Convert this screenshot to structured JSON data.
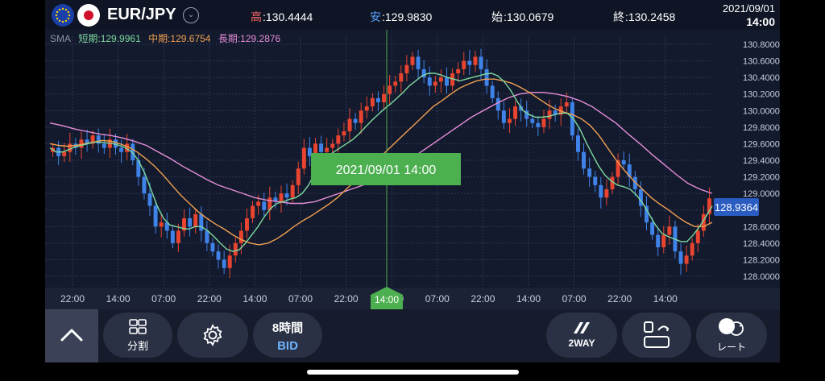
{
  "header": {
    "pair": "EUR/JPY",
    "high_label": "高",
    "high_value": ":130.4444",
    "low_label": "安",
    "low_value": ":129.9830",
    "open_label": "始",
    "open_value": ":130.0679",
    "close_label": "終",
    "close_value": ":130.2458",
    "date": "2021/09/01",
    "time": "14:00"
  },
  "sma": {
    "label": "SMA",
    "short": "短期:129.9961",
    "mid": "中期:129.6754",
    "long": "長期:129.2876"
  },
  "chart_data": {
    "type": "candlestick",
    "ylim": [
      128.0,
      130.8
    ],
    "yticks": [
      "130.8000",
      "130.6000",
      "130.4000",
      "130.2000",
      "130.0000",
      "129.8000",
      "129.6000",
      "129.4000",
      "129.2000",
      "129.0000",
      "128.8000",
      "128.6000",
      "128.4000",
      "128.2000",
      "128.0000"
    ],
    "xticks": [
      "22:00",
      "14:00",
      "07:00",
      "22:00",
      "14:00",
      "07:00",
      "22:00",
      "14:00",
      "07:00",
      "22:00",
      "14:00",
      "07:00",
      "22:00",
      "14:00"
    ],
    "crosshair_label": "2021/09/01 14:00",
    "crosshair_time": "14:00",
    "price_tag": "128.9364",
    "colors": {
      "up": "#e8442f",
      "down": "#3f83e8",
      "short": "#7ed99e",
      "mid": "#f0a050",
      "long": "#e68ed6",
      "grid": "#2e3650",
      "tag": "#2a5cc2",
      "cross": "#4caf50"
    },
    "closes": [
      129.55,
      129.45,
      129.5,
      129.6,
      129.55,
      129.65,
      129.6,
      129.7,
      129.6,
      129.55,
      129.65,
      129.55,
      129.5,
      129.6,
      129.4,
      129.2,
      129.0,
      128.85,
      128.6,
      128.65,
      128.55,
      128.4,
      128.55,
      128.7,
      128.6,
      128.75,
      128.55,
      128.4,
      128.3,
      128.2,
      128.1,
      128.25,
      128.4,
      128.55,
      128.7,
      128.85,
      128.9,
      128.8,
      128.95,
      128.9,
      129.0,
      128.95,
      129.1,
      129.3,
      129.55,
      129.45,
      129.6,
      129.5,
      129.55,
      129.6,
      129.7,
      129.75,
      129.9,
      129.85,
      130.0,
      130.05,
      130.15,
      130.1,
      130.2,
      130.3,
      130.35,
      130.45,
      130.55,
      130.65,
      130.5,
      130.4,
      130.3,
      130.35,
      130.4,
      130.3,
      130.45,
      130.5,
      130.6,
      130.55,
      130.65,
      130.5,
      130.3,
      130.15,
      130.0,
      129.85,
      129.9,
      130.05,
      130.0,
      129.9,
      129.85,
      129.8,
      129.9,
      130.0,
      129.95,
      130.05,
      130.1,
      129.7,
      129.5,
      129.3,
      129.2,
      129.1,
      128.95,
      129.05,
      129.2,
      129.4,
      129.35,
      129.2,
      129.05,
      128.85,
      128.65,
      128.5,
      128.35,
      128.5,
      128.6,
      128.3,
      128.15,
      128.25,
      128.4,
      128.55,
      128.75,
      128.94
    ],
    "sma_short": [
      129.55,
      129.5,
      129.5,
      129.53,
      129.56,
      129.58,
      129.6,
      129.62,
      129.62,
      129.61,
      129.6,
      129.58,
      129.55,
      129.5,
      129.4,
      129.25,
      129.05,
      128.85,
      128.7,
      128.62,
      128.6,
      128.58,
      128.57,
      128.6,
      128.6,
      128.55,
      128.48,
      128.4,
      128.33,
      128.3,
      128.32,
      128.4,
      128.5,
      128.6,
      128.72,
      128.82,
      128.88,
      128.9,
      128.93,
      128.95,
      129.0,
      129.1,
      129.25,
      129.38,
      129.45,
      129.5,
      129.55,
      129.6,
      129.65,
      129.72,
      129.8,
      129.88,
      129.95,
      130.02,
      130.08,
      130.15,
      130.22,
      130.3,
      130.36,
      130.42,
      130.45,
      130.45,
      130.43,
      130.4,
      130.38,
      130.36,
      130.38,
      130.4,
      130.42,
      130.44,
      130.45,
      130.42,
      130.35,
      130.25,
      130.12,
      130.0,
      129.95,
      129.92,
      129.92,
      129.93,
      129.95,
      129.97,
      129.97,
      129.9,
      129.78,
      129.62,
      129.47,
      129.33,
      129.22,
      129.15,
      129.1,
      129.08,
      129.05,
      128.98,
      128.88,
      128.75,
      128.62,
      128.52,
      128.48,
      128.45,
      128.42,
      128.42,
      128.5,
      128.6,
      128.72,
      128.85
    ],
    "sma_mid": [
      129.6,
      129.58,
      129.57,
      129.58,
      129.6,
      129.62,
      129.64,
      129.63,
      129.6,
      129.56,
      129.5,
      129.42,
      129.33,
      129.22,
      129.1,
      128.98,
      128.88,
      128.78,
      128.7,
      128.63,
      128.57,
      128.5,
      128.44,
      128.4,
      128.38,
      128.4,
      128.45,
      128.52,
      128.6,
      128.67,
      128.73,
      128.8,
      128.87,
      128.95,
      129.05,
      129.15,
      129.25,
      129.35,
      129.45,
      129.55,
      129.65,
      129.75,
      129.85,
      129.95,
      130.05,
      130.12,
      130.2,
      130.27,
      130.32,
      130.36,
      130.38,
      130.38,
      130.36,
      130.33,
      130.28,
      130.22,
      130.15,
      130.08,
      130.02,
      129.98,
      129.95,
      129.9,
      129.82,
      129.7,
      129.55,
      129.4,
      129.27,
      129.15,
      129.05,
      128.95,
      128.87,
      128.8,
      128.72,
      128.65,
      128.6,
      128.6,
      128.65
    ],
    "sma_long": [
      129.85,
      129.82,
      129.78,
      129.75,
      129.72,
      129.7,
      129.67,
      129.63,
      129.58,
      129.5,
      129.42,
      129.33,
      129.25,
      129.17,
      129.1,
      129.05,
      129.0,
      128.95,
      128.92,
      128.9,
      128.88,
      128.88,
      128.9,
      128.95,
      129.0,
      129.05,
      129.1,
      129.18,
      129.25,
      129.33,
      129.42,
      129.52,
      129.62,
      129.72,
      129.82,
      129.92,
      130.0,
      130.08,
      130.15,
      130.2,
      130.22,
      130.22,
      130.2,
      130.17,
      130.12,
      130.05,
      129.95,
      129.85,
      129.72,
      129.6,
      129.47,
      129.35,
      129.23,
      129.12,
      129.05,
      129.0
    ]
  },
  "toolbar": {
    "split_label": "分割",
    "interval_label": "8時間",
    "bid_label": "BID",
    "twoway_label": "2WAY",
    "rate_label": "レート"
  }
}
